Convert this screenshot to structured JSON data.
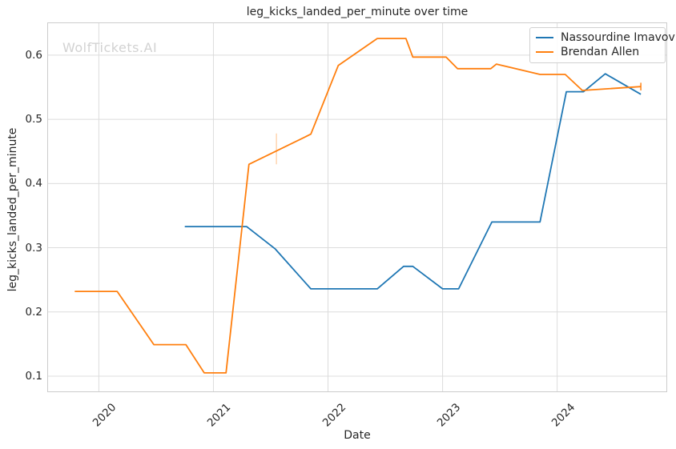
{
  "watermark": "WolfTickets.AI",
  "colors": {
    "imavov_blue": "#1f77b4",
    "allen_orange": "#ff7f0e",
    "grid": "#dcdcdc",
    "spine": "#cccccc",
    "text": "#262626",
    "watermark": "#d2d2d2"
  },
  "chart_data": {
    "type": "line",
    "title": "leg_kicks_landed_per_minute over time",
    "xlabel": "Date",
    "ylabel": "leg_kicks_landed_per_minute",
    "xlim": [
      2019.55,
      2024.96
    ],
    "ylim": [
      0.075,
      0.651
    ],
    "x_ticks": [
      2020,
      2021,
      2022,
      2023,
      2024
    ],
    "y_ticks": [
      0.1,
      0.2,
      0.3,
      0.4,
      0.5,
      0.6
    ],
    "grid": true,
    "legend_position": "upper right",
    "series": [
      {
        "name": "Nassourdine Imavov",
        "color": "#1f77b4",
        "x": [
          2020.75,
          2021.29,
          2021.54,
          2021.85,
          2022.43,
          2022.66,
          2022.74,
          2023.0,
          2023.14,
          2023.43,
          2023.85,
          2024.08,
          2024.23,
          2024.42,
          2024.73
        ],
        "y": [
          0.333,
          0.333,
          0.298,
          0.236,
          0.236,
          0.271,
          0.271,
          0.236,
          0.236,
          0.34,
          0.34,
          0.543,
          0.543,
          0.571,
          0.539
        ]
      },
      {
        "name": "Brendan Allen",
        "color": "#ff7f0e",
        "x": [
          2019.79,
          2020.16,
          2020.48,
          2020.76,
          2020.92,
          2021.11,
          2021.31,
          2021.85,
          2022.09,
          2022.43,
          2022.68,
          2022.74,
          2023.03,
          2023.13,
          2023.42,
          2023.47,
          2023.85,
          2024.07,
          2024.22,
          2024.73
        ],
        "y": [
          0.232,
          0.232,
          0.149,
          0.149,
          0.105,
          0.105,
          0.43,
          0.477,
          0.584,
          0.626,
          0.626,
          0.597,
          0.597,
          0.579,
          0.579,
          0.586,
          0.57,
          0.57,
          0.545,
          0.551
        ]
      }
    ],
    "error_ticks": [
      {
        "series": "Brendan Allen",
        "x": 2021.55,
        "y_from": 0.43,
        "y_to": 0.478,
        "color": "#ff7f0e",
        "opacity": 0.3
      },
      {
        "series": "Brendan Allen",
        "x": 2024.73,
        "y_from": 0.545,
        "y_to": 0.557,
        "color": "#ff7f0e",
        "opacity": 0.9
      }
    ]
  }
}
